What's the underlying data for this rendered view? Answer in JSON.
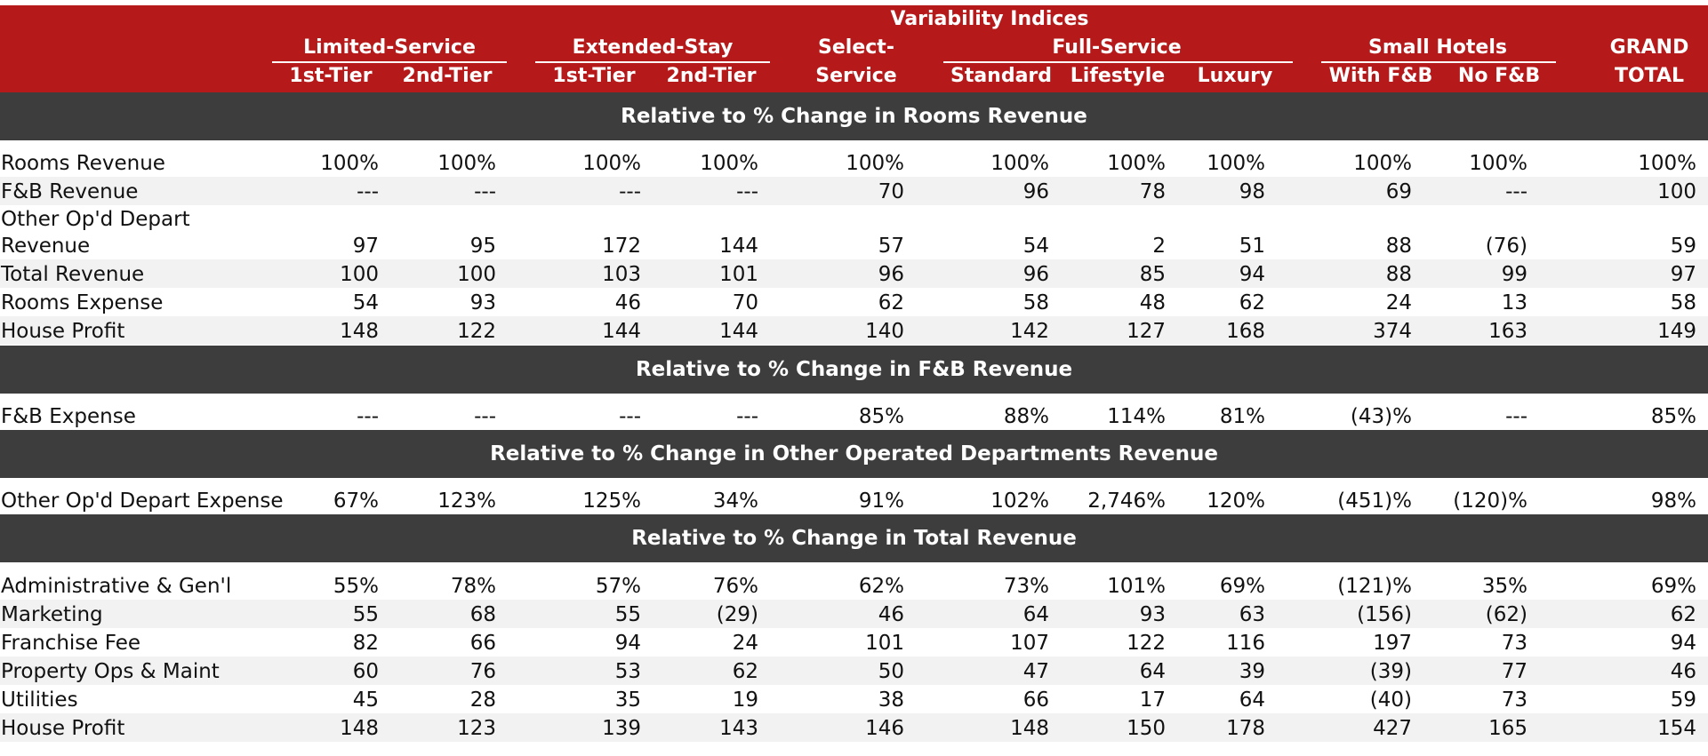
{
  "header": {
    "super_title": "Variability Indices",
    "groups": {
      "limited_service": "Limited-Service",
      "extended_stay": "Extended-Stay",
      "select_service_line1": "Select-",
      "full_service": "Full-Service",
      "small_hotels": "Small Hotels",
      "grand_total_line1": "GRAND"
    },
    "columns": [
      "1st-Tier",
      "2nd-Tier",
      "1st-Tier",
      "2nd-Tier",
      "Service",
      "Standard",
      "Lifestyle",
      "Luxury",
      "With F&B",
      "No F&B",
      "TOTAL"
    ]
  },
  "sections": [
    {
      "title": "Relative to % Change in Rooms Revenue",
      "rows": [
        {
          "label": "Rooms Revenue",
          "values": [
            "100%",
            "100%",
            "100%",
            "100%",
            "100%",
            "100%",
            "100%",
            "100%",
            "100%",
            "100%",
            "100%"
          ]
        },
        {
          "label": "F&B Revenue",
          "values": [
            "---",
            "---",
            "---",
            "---",
            "70",
            "96",
            "78",
            "98",
            "69",
            "---",
            "100"
          ]
        },
        {
          "label": "Other Op'd Depart Revenue",
          "values": [
            "97",
            "95",
            "172",
            "144",
            "57",
            "54",
            "2",
            "51",
            "88",
            "(76)",
            "59"
          ]
        },
        {
          "label": "Total Revenue",
          "values": [
            "100",
            "100",
            "103",
            "101",
            "96",
            "96",
            "85",
            "94",
            "88",
            "99",
            "97"
          ]
        },
        {
          "label": "Rooms Expense",
          "values": [
            "54",
            "93",
            "46",
            "70",
            "62",
            "58",
            "48",
            "62",
            "24",
            "13",
            "58"
          ]
        },
        {
          "label": "House Profit",
          "values": [
            "148",
            "122",
            "144",
            "144",
            "140",
            "142",
            "127",
            "168",
            "374",
            "163",
            "149"
          ]
        }
      ]
    },
    {
      "title": "Relative to % Change in F&B Revenue",
      "rows": [
        {
          "label": "F&B Expense",
          "values": [
            "---",
            "---",
            "---",
            "---",
            "85%",
            "88%",
            "114%",
            "81%",
            "(43)%",
            "---",
            "85%"
          ]
        }
      ]
    },
    {
      "title": "Relative to % Change in Other Operated Departments Revenue",
      "rows": [
        {
          "label": "Other Op'd Depart Expense",
          "values": [
            "67%",
            "123%",
            "125%",
            "34%",
            "91%",
            "102%",
            "2,746%",
            "120%",
            "(451)%",
            "(120)%",
            "98%"
          ]
        }
      ]
    },
    {
      "title": "Relative to % Change in Total Revenue",
      "rows": [
        {
          "label": "Administrative & Gen'l",
          "values": [
            "55%",
            "78%",
            "57%",
            "76%",
            "62%",
            "73%",
            "101%",
            "69%",
            "(121)%",
            "35%",
            "69%"
          ]
        },
        {
          "label": "Marketing",
          "values": [
            "55",
            "68",
            "55",
            "(29)",
            "46",
            "64",
            "93",
            "63",
            "(156)",
            "(62)",
            "62"
          ]
        },
        {
          "label": "Franchise Fee",
          "values": [
            "82",
            "66",
            "94",
            "24",
            "101",
            "107",
            "122",
            "116",
            "197",
            "73",
            "94"
          ]
        },
        {
          "label": "Property Ops & Maint",
          "values": [
            "60",
            "76",
            "53",
            "62",
            "50",
            "47",
            "64",
            "39",
            "(39)",
            "77",
            "46"
          ]
        },
        {
          "label": "Utilities",
          "values": [
            "45",
            "28",
            "35",
            "19",
            "38",
            "66",
            "17",
            "64",
            "(40)",
            "73",
            "59"
          ]
        },
        {
          "label": "House Profit",
          "values": [
            "148",
            "123",
            "139",
            "143",
            "146",
            "148",
            "150",
            "178",
            "427",
            "165",
            "154"
          ]
        }
      ]
    }
  ]
}
